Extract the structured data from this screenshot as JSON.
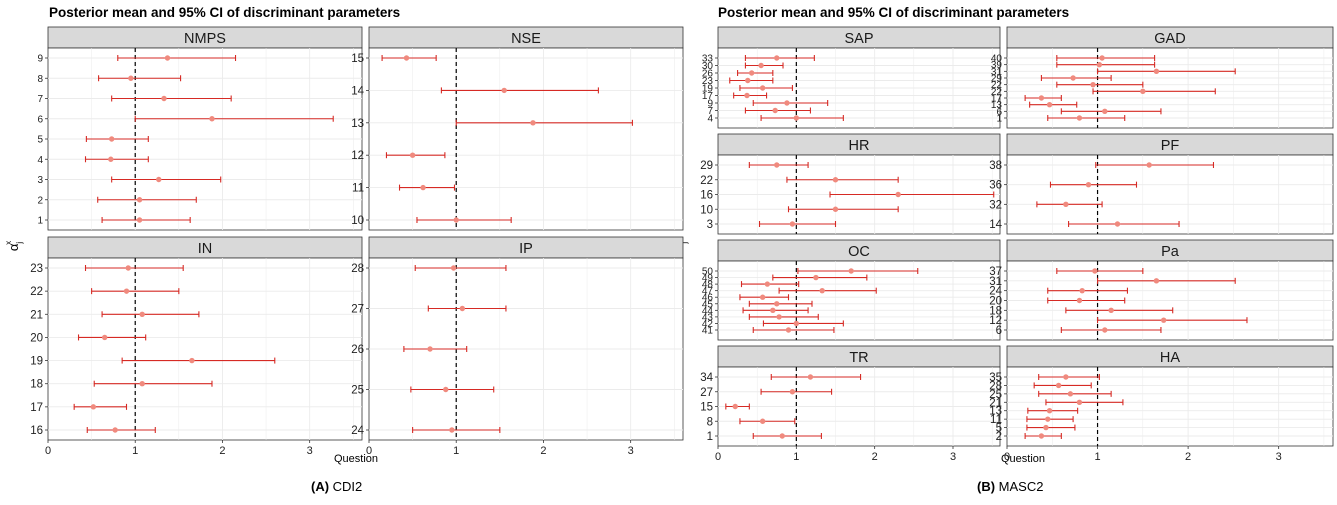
{
  "figure": {
    "colors": {
      "point": "#f08a7e",
      "interval": "#d62a24",
      "strip": "#d9d9d9",
      "grid": "#ebebeb",
      "refline": "#000000"
    },
    "reference_x": 1,
    "x_range": [
      0,
      3.6
    ],
    "x_ticks": [
      0,
      1,
      2,
      3
    ],
    "panels": [
      {
        "key": "A",
        "title": "Posterior mean and 95% CI of discriminant parameters",
        "xlabel": "Question",
        "ylabel_main": "α",
        "ylabel_sub": "j",
        "ylabel_sup": "x",
        "caption_bold": "(A)",
        "caption_text": " CDI2"
      },
      {
        "key": "B",
        "title": "Posterior mean and 95% CI of discriminant parameters",
        "xlabel": "Question",
        "ylabel_main": "α",
        "ylabel_sub": "j",
        "ylabel_sup": "x",
        "caption_bold": "(B)",
        "caption_text": " MASC2"
      }
    ]
  },
  "chart_data": [
    {
      "type": "scatter",
      "panel": "A",
      "facet": "NMPS",
      "items": [
        {
          "y": "9",
          "mean": 1.37,
          "lo": 0.8,
          "hi": 2.15
        },
        {
          "y": "8",
          "mean": 0.95,
          "lo": 0.58,
          "hi": 1.52
        },
        {
          "y": "7",
          "mean": 1.33,
          "lo": 0.73,
          "hi": 2.1
        },
        {
          "y": "6",
          "mean": 1.88,
          "lo": 1.0,
          "hi": 3.27
        },
        {
          "y": "5",
          "mean": 0.73,
          "lo": 0.44,
          "hi": 1.15
        },
        {
          "y": "4",
          "mean": 0.72,
          "lo": 0.43,
          "hi": 1.15
        },
        {
          "y": "3",
          "mean": 1.27,
          "lo": 0.73,
          "hi": 1.98
        },
        {
          "y": "2",
          "mean": 1.05,
          "lo": 0.57,
          "hi": 1.7
        },
        {
          "y": "1",
          "mean": 1.05,
          "lo": 0.62,
          "hi": 1.63
        }
      ]
    },
    {
      "type": "scatter",
      "panel": "A",
      "facet": "NSE",
      "items": [
        {
          "y": "15",
          "mean": 0.43,
          "lo": 0.15,
          "hi": 0.77
        },
        {
          "y": "14",
          "mean": 1.55,
          "lo": 0.83,
          "hi": 2.63
        },
        {
          "y": "13",
          "mean": 1.88,
          "lo": 1.0,
          "hi": 3.02
        },
        {
          "y": "12",
          "mean": 0.5,
          "lo": 0.2,
          "hi": 0.87
        },
        {
          "y": "11",
          "mean": 0.62,
          "lo": 0.35,
          "hi": 0.98
        },
        {
          "y": "10",
          "mean": 1.0,
          "lo": 0.55,
          "hi": 1.63
        }
      ]
    },
    {
      "type": "scatter",
      "panel": "A",
      "facet": "IN",
      "items": [
        {
          "y": "23",
          "mean": 0.92,
          "lo": 0.43,
          "hi": 1.55
        },
        {
          "y": "22",
          "mean": 0.9,
          "lo": 0.5,
          "hi": 1.5
        },
        {
          "y": "21",
          "mean": 1.08,
          "lo": 0.62,
          "hi": 1.73
        },
        {
          "y": "20",
          "mean": 0.65,
          "lo": 0.35,
          "hi": 1.12
        },
        {
          "y": "19",
          "mean": 1.65,
          "lo": 0.85,
          "hi": 2.6
        },
        {
          "y": "18",
          "mean": 1.08,
          "lo": 0.53,
          "hi": 1.88
        },
        {
          "y": "17",
          "mean": 0.52,
          "lo": 0.3,
          "hi": 0.9
        },
        {
          "y": "16",
          "mean": 0.77,
          "lo": 0.45,
          "hi": 1.23
        }
      ]
    },
    {
      "type": "scatter",
      "panel": "A",
      "facet": "IP",
      "items": [
        {
          "y": "28",
          "mean": 0.97,
          "lo": 0.53,
          "hi": 1.57
        },
        {
          "y": "27",
          "mean": 1.07,
          "lo": 0.68,
          "hi": 1.57
        },
        {
          "y": "26",
          "mean": 0.7,
          "lo": 0.4,
          "hi": 1.12
        },
        {
          "y": "25",
          "mean": 0.88,
          "lo": 0.48,
          "hi": 1.43
        },
        {
          "y": "24",
          "mean": 0.95,
          "lo": 0.5,
          "hi": 1.5
        }
      ]
    },
    {
      "type": "scatter",
      "panel": "B",
      "facet": "SAP",
      "items": [
        {
          "y": "33",
          "mean": 0.75,
          "lo": 0.35,
          "hi": 1.23
        },
        {
          "y": "30",
          "mean": 0.55,
          "lo": 0.35,
          "hi": 0.83
        },
        {
          "y": "26",
          "mean": 0.43,
          "lo": 0.25,
          "hi": 0.7
        },
        {
          "y": "23",
          "mean": 0.38,
          "lo": 0.15,
          "hi": 0.7
        },
        {
          "y": "19",
          "mean": 0.57,
          "lo": 0.28,
          "hi": 0.95
        },
        {
          "y": "17",
          "mean": 0.37,
          "lo": 0.2,
          "hi": 0.62
        },
        {
          "y": "9",
          "mean": 0.88,
          "lo": 0.45,
          "hi": 1.4
        },
        {
          "y": "7",
          "mean": 0.73,
          "lo": 0.35,
          "hi": 1.18
        },
        {
          "y": "4",
          "mean": 1.0,
          "lo": 0.55,
          "hi": 1.6
        }
      ]
    },
    {
      "type": "scatter",
      "panel": "B",
      "facet": "GAD",
      "items": [
        {
          "y": "40",
          "mean": 1.05,
          "lo": 0.55,
          "hi": 1.63
        },
        {
          "y": "39",
          "mean": 1.02,
          "lo": 0.55,
          "hi": 1.63
        },
        {
          "y": "31",
          "mean": 1.65,
          "lo": 1.0,
          "hi": 2.52
        },
        {
          "y": "29",
          "mean": 0.73,
          "lo": 0.38,
          "hi": 1.15
        },
        {
          "y": "22",
          "mean": 0.95,
          "lo": 0.55,
          "hi": 1.5
        },
        {
          "y": "22",
          "mean": 1.5,
          "lo": 0.95,
          "hi": 2.3
        },
        {
          "y": "17",
          "mean": 0.38,
          "lo": 0.2,
          "hi": 0.6
        },
        {
          "y": "13",
          "mean": 0.47,
          "lo": 0.25,
          "hi": 0.77
        },
        {
          "y": "6",
          "mean": 1.08,
          "lo": 0.6,
          "hi": 1.7
        },
        {
          "y": "1",
          "mean": 0.8,
          "lo": 0.45,
          "hi": 1.3
        }
      ]
    },
    {
      "type": "scatter",
      "panel": "B",
      "facet": "HR",
      "items": [
        {
          "y": "29",
          "mean": 0.75,
          "lo": 0.4,
          "hi": 1.15
        },
        {
          "y": "22",
          "mean": 1.5,
          "lo": 0.88,
          "hi": 2.3
        },
        {
          "y": "16",
          "mean": 2.3,
          "lo": 1.43,
          "hi": 3.52
        },
        {
          "y": "10",
          "mean": 1.5,
          "lo": 0.9,
          "hi": 2.3
        },
        {
          "y": "3",
          "mean": 0.95,
          "lo": 0.53,
          "hi": 1.5
        }
      ]
    },
    {
      "type": "scatter",
      "panel": "B",
      "facet": "PF",
      "items": [
        {
          "y": "38",
          "mean": 1.57,
          "lo": 0.98,
          "hi": 2.28
        },
        {
          "y": "36",
          "mean": 0.9,
          "lo": 0.48,
          "hi": 1.43
        },
        {
          "y": "32",
          "mean": 0.65,
          "lo": 0.33,
          "hi": 1.05
        },
        {
          "y": "14",
          "mean": 1.22,
          "lo": 0.68,
          "hi": 1.9
        }
      ]
    },
    {
      "type": "scatter",
      "panel": "B",
      "facet": "OC",
      "items": [
        {
          "y": "50",
          "mean": 1.7,
          "lo": 1.02,
          "hi": 2.55
        },
        {
          "y": "49",
          "mean": 1.25,
          "lo": 0.7,
          "hi": 1.9
        },
        {
          "y": "48",
          "mean": 0.63,
          "lo": 0.3,
          "hi": 1.03
        },
        {
          "y": "47",
          "mean": 1.33,
          "lo": 0.78,
          "hi": 2.02
        },
        {
          "y": "46",
          "mean": 0.57,
          "lo": 0.28,
          "hi": 0.9
        },
        {
          "y": "45",
          "mean": 0.75,
          "lo": 0.4,
          "hi": 1.2
        },
        {
          "y": "44",
          "mean": 0.7,
          "lo": 0.32,
          "hi": 1.15
        },
        {
          "y": "43",
          "mean": 0.78,
          "lo": 0.4,
          "hi": 1.28
        },
        {
          "y": "42",
          "mean": 1.0,
          "lo": 0.58,
          "hi": 1.6
        },
        {
          "y": "41",
          "mean": 0.9,
          "lo": 0.45,
          "hi": 1.48
        }
      ]
    },
    {
      "type": "scatter",
      "panel": "B",
      "facet": "Pa",
      "items": [
        {
          "y": "37",
          "mean": 0.97,
          "lo": 0.55,
          "hi": 1.5
        },
        {
          "y": "31",
          "mean": 1.65,
          "lo": 1.0,
          "hi": 2.52
        },
        {
          "y": "24",
          "mean": 0.83,
          "lo": 0.45,
          "hi": 1.33
        },
        {
          "y": "20",
          "mean": 0.8,
          "lo": 0.45,
          "hi": 1.3
        },
        {
          "y": "18",
          "mean": 1.15,
          "lo": 0.65,
          "hi": 1.83
        },
        {
          "y": "12",
          "mean": 1.73,
          "lo": 1.0,
          "hi": 2.65
        },
        {
          "y": "6",
          "mean": 1.08,
          "lo": 0.6,
          "hi": 1.7
        }
      ]
    },
    {
      "type": "scatter",
      "panel": "B",
      "facet": "TR",
      "items": [
        {
          "y": "34",
          "mean": 1.18,
          "lo": 0.68,
          "hi": 1.82
        },
        {
          "y": "27",
          "mean": 0.95,
          "lo": 0.55,
          "hi": 1.45
        },
        {
          "y": "15",
          "mean": 0.22,
          "lo": 0.1,
          "hi": 0.4
        },
        {
          "y": "8",
          "mean": 0.57,
          "lo": 0.28,
          "hi": 0.98
        },
        {
          "y": "1",
          "mean": 0.82,
          "lo": 0.45,
          "hi": 1.32
        }
      ]
    },
    {
      "type": "scatter",
      "panel": "B",
      "facet": "HA",
      "items": [
        {
          "y": "35",
          "mean": 0.65,
          "lo": 0.35,
          "hi": 1.02
        },
        {
          "y": "28",
          "mean": 0.57,
          "lo": 0.3,
          "hi": 0.93
        },
        {
          "y": "25",
          "mean": 0.7,
          "lo": 0.35,
          "hi": 1.15
        },
        {
          "y": "21",
          "mean": 0.8,
          "lo": 0.43,
          "hi": 1.28
        },
        {
          "y": "13",
          "mean": 0.47,
          "lo": 0.23,
          "hi": 0.78
        },
        {
          "y": "11",
          "mean": 0.45,
          "lo": 0.22,
          "hi": 0.73
        },
        {
          "y": "5",
          "mean": 0.43,
          "lo": 0.22,
          "hi": 0.75
        },
        {
          "y": "2",
          "mean": 0.38,
          "lo": 0.2,
          "hi": 0.6
        }
      ]
    }
  ]
}
